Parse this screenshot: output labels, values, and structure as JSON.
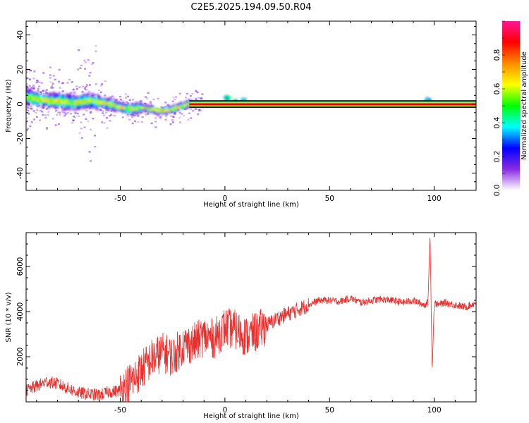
{
  "title": "C2E5.2025.194.09.50.R04",
  "chart_data": [
    {
      "type": "heatmap",
      "xlabel": "Height of straight line (km)",
      "ylabel": "Frequency (Hz)",
      "xlim": [
        -95,
        120
      ],
      "ylim": [
        -50,
        48
      ],
      "xticks": [
        -50,
        0,
        50,
        100
      ],
      "yticks": [
        -40,
        -20,
        0,
        20,
        40
      ],
      "colorbar": {
        "label": "Normalized spectral amplitude",
        "range": [
          0,
          1
        ],
        "ticks": [
          "0.0",
          "0.2",
          "0.4",
          "0.6",
          "0.8"
        ],
        "colors": [
          "#ffffff",
          "#8a2be2",
          "#0000ff",
          "#00ffff",
          "#00ff00",
          "#ffff00",
          "#ff8c00",
          "#ff0000",
          "#ff1493"
        ]
      },
      "ridge": {
        "x": [
          -95,
          -90,
          -85,
          -80,
          -75,
          -70,
          -65,
          -60,
          -55,
          -50,
          -45,
          -40,
          -35,
          -30,
          -25,
          -20,
          -17,
          -10,
          0,
          3,
          6,
          9,
          12,
          20,
          40,
          60,
          80,
          96,
          98,
          100,
          120
        ],
        "y": [
          4,
          3,
          2,
          2,
          1,
          1,
          2,
          1,
          0,
          -2,
          -3,
          -2,
          -3,
          -4,
          -3,
          -1,
          0,
          0,
          0,
          1,
          0,
          1,
          0,
          0,
          0,
          0,
          0,
          0,
          1,
          0,
          0
        ]
      },
      "steady_line_start_x": -17
    },
    {
      "type": "line",
      "xlabel": "Height of straight line (km)",
      "ylabel": "SNR (10 * v/v)",
      "xlim": [
        -95,
        120
      ],
      "ylim": [
        0,
        7500
      ],
      "xticks": [
        -50,
        0,
        50,
        100
      ],
      "yticks": [
        2000,
        4000,
        6000
      ],
      "color": "#e8302e",
      "series": [
        {
          "x": [
            -95,
            -90,
            -85,
            -80,
            -75,
            -70,
            -65,
            -60,
            -55,
            -50,
            -45,
            -40,
            -35,
            -30,
            -25,
            -20,
            -15,
            -10,
            -5,
            0,
            5,
            10,
            15,
            20,
            25,
            30,
            35,
            40,
            45,
            50,
            55,
            60,
            65,
            70,
            75,
            80,
            85,
            90,
            95,
            97,
            98,
            99,
            100,
            102,
            105,
            110,
            115,
            120
          ],
          "y": [
            500,
            700,
            900,
            800,
            600,
            400,
            350,
            300,
            450,
            500,
            900,
            1400,
            1900,
            2200,
            2000,
            2500,
            2600,
            2900,
            2800,
            3300,
            3200,
            2900,
            3100,
            3400,
            3700,
            3900,
            4100,
            4300,
            4500,
            4500,
            4450,
            4600,
            4400,
            4500,
            4550,
            4500,
            4400,
            4500,
            4300,
            4400,
            7500,
            1300,
            4400,
            4300,
            4400,
            4300,
            4200,
            4400
          ]
        }
      ]
    }
  ]
}
